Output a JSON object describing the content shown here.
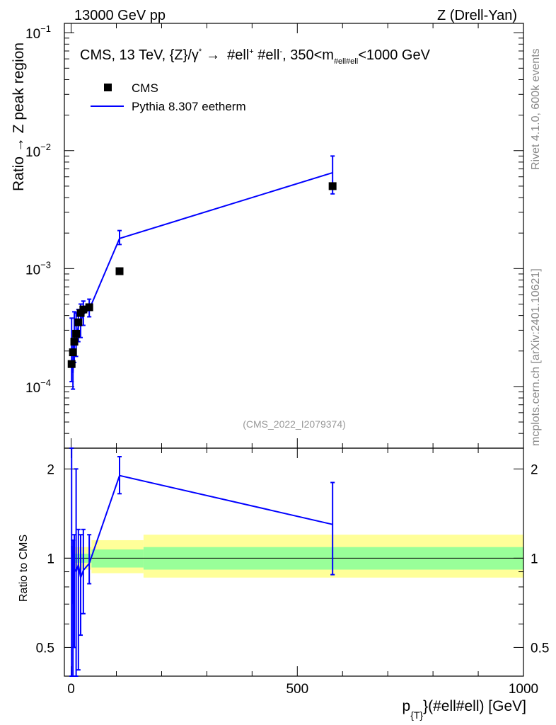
{
  "header": {
    "left": "13000 GeV pp",
    "right": "Z (Drell-Yan)"
  },
  "side": {
    "rivet": "Rivet 4.1.0,  600k events",
    "source": "mcplots.cern.ch [arXiv:2401.10621]"
  },
  "colors": {
    "data": "#000000",
    "mc": "#0000ff",
    "band_inner": "#99ff99",
    "band_outer": "#ffff99"
  },
  "chart_data": [
    {
      "type": "line",
      "panel": "main",
      "title": "CMS, 13 TeV, {Z}/γ* → #ell⁺ #ell⁻, 350<m_{#ell#ell}<1000 GeV",
      "title_parts": {
        "a": "CMS, 13 TeV, {Z}/",
        "gamma": "γ",
        "star": "*",
        "arrow": "→",
        "b": "#ell",
        "plus": "+",
        "c": " #ell",
        "minus": "-",
        "d": ", 350<m",
        "sub": "#ell#ell",
        "e": "<1000 GeV"
      },
      "ylabel": "Ratio → Z peak region",
      "yscale": "log",
      "ylim": [
        3e-05,
        0.12
      ],
      "xlim": [
        -15,
        1000
      ],
      "y_tick_labels": [
        {
          "value": 0.1,
          "base": "10",
          "exp": "−1"
        },
        {
          "value": 0.01,
          "base": "10",
          "exp": "−2"
        },
        {
          "value": 0.001,
          "base": "10",
          "exp": "−3"
        },
        {
          "value": 0.0001,
          "base": "10",
          "exp": "−4"
        }
      ],
      "legend": {
        "position": "top-left",
        "entries": [
          {
            "name": "CMS",
            "style": "marker"
          },
          {
            "name": "Pythia 8.307 eetherm",
            "style": "line"
          }
        ]
      },
      "watermark": "(CMS_2022_I2079374)",
      "series": [
        {
          "name": "CMS",
          "style": "marker",
          "x": [
            1,
            4,
            7,
            11,
            16,
            21,
            27,
            40,
            107,
            578
          ],
          "y": [
            0.000155,
            0.000195,
            0.00024,
            0.00028,
            0.00035,
            0.00042,
            0.00045,
            0.00047,
            0.00095,
            0.005
          ]
        },
        {
          "name": "Pythia 8.307 eetherm",
          "style": "line",
          "x": [
            1,
            4,
            7,
            11,
            16,
            21,
            27,
            40,
            107,
            578
          ],
          "y": [
            0.00017,
            0.00013,
            0.00022,
            0.00025,
            0.00033,
            0.00036,
            0.00041,
            0.00045,
            0.0018,
            0.0065
          ],
          "err_lo": [
            0.00011,
            9.5e-05,
            0.00016,
            0.00018,
            0.00024,
            0.00026,
            0.00033,
            0.00039,
            0.0016,
            0.0043
          ],
          "err_hi": [
            0.00038,
            0.00025,
            0.00043,
            0.00042,
            0.00045,
            0.0005,
            0.00053,
            0.00055,
            0.0021,
            0.009
          ]
        }
      ]
    },
    {
      "type": "line",
      "panel": "ratio",
      "ylabel": "Ratio to CMS",
      "xlabel": "p_{T}(#ell#ell) [GeV]",
      "xlabel_parts": {
        "p": "p",
        "sub": "{T}",
        "rest": "}(#ell#ell) [GeV]"
      },
      "yscale": "log",
      "ylim": [
        0.4,
        2.35
      ],
      "xlim": [
        -15,
        1000
      ],
      "x_ticks": [
        0,
        500,
        1000
      ],
      "y_ticks": [
        0.5,
        1,
        2
      ],
      "band_inner": [
        {
          "x0": 0,
          "x1": 45,
          "lo": 0.965,
          "hi": 1.035
        },
        {
          "x0": 45,
          "x1": 160,
          "lo": 0.93,
          "hi": 1.07
        },
        {
          "x0": 160,
          "x1": 1000,
          "lo": 0.915,
          "hi": 1.09
        }
      ],
      "band_outer": [
        {
          "x0": 0,
          "x1": 45,
          "lo": 0.915,
          "hi": 1.09
        },
        {
          "x0": 45,
          "x1": 160,
          "lo": 0.89,
          "hi": 1.15
        },
        {
          "x0": 160,
          "x1": 1000,
          "lo": 0.86,
          "hi": 1.2
        }
      ],
      "series": [
        {
          "name": "Pythia 8.307 eetherm / CMS",
          "x": [
            1,
            4,
            7,
            11,
            16,
            21,
            27,
            40,
            107,
            578
          ],
          "y": [
            1.1,
            0.7,
            0.92,
            0.9,
            0.95,
            0.86,
            0.91,
            0.96,
            1.9,
            1.3
          ],
          "err_lo": [
            0.38,
            0.3,
            0.5,
            0.35,
            0.42,
            0.55,
            0.65,
            0.82,
            1.65,
            0.88
          ],
          "err_hi": [
            2.35,
            1.15,
            1.2,
            2.0,
            1.25,
            1.2,
            1.25,
            1.2,
            2.2,
            1.8
          ]
        }
      ]
    }
  ]
}
